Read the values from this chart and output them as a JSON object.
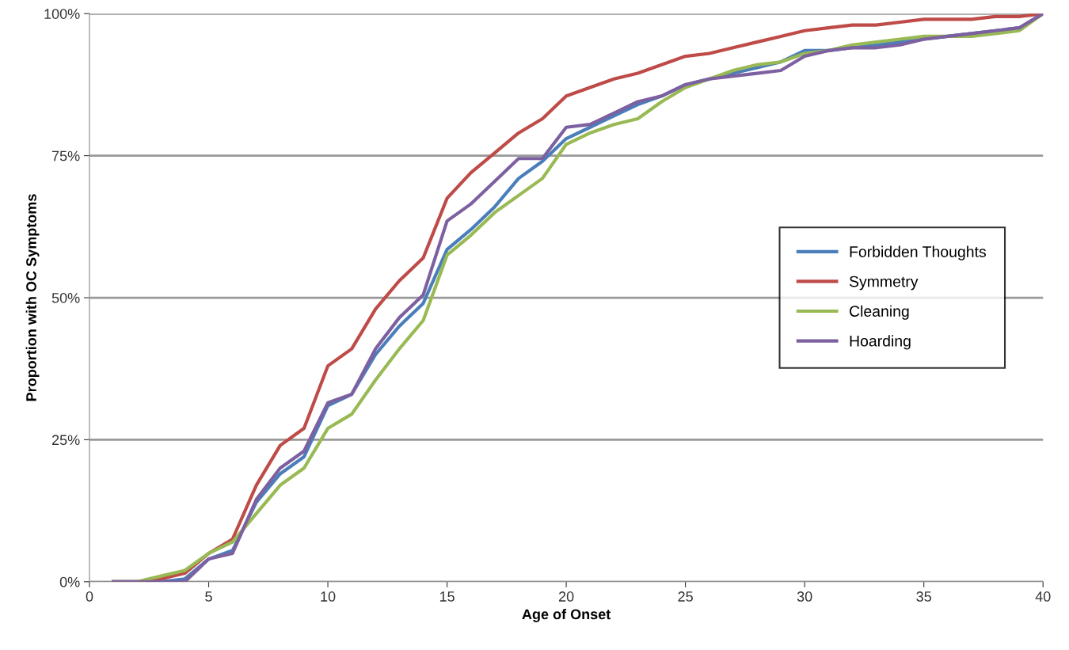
{
  "chart_data": {
    "type": "line",
    "xlabel": "Age of Onset",
    "ylabel": "Proportion with OC Symptoms",
    "x": [
      1,
      2,
      3,
      4,
      5,
      6,
      7,
      8,
      9,
      10,
      11,
      12,
      13,
      14,
      15,
      16,
      17,
      18,
      19,
      20,
      21,
      22,
      23,
      24,
      25,
      26,
      27,
      28,
      29,
      30,
      31,
      32,
      33,
      34,
      35,
      36,
      37,
      38,
      39,
      40
    ],
    "series": [
      {
        "name": "Forbidden Thoughts",
        "color": "#4a7ebb",
        "values": [
          0,
          0,
          0,
          0.5,
          4,
          5.5,
          14,
          19,
          22,
          31,
          33,
          40,
          45,
          49,
          58.5,
          62,
          66,
          71,
          74,
          78,
          80,
          82,
          84,
          85.5,
          87.5,
          88.5,
          89.5,
          90.5,
          91.5,
          93.5,
          93.5,
          94,
          94.5,
          95,
          95.5,
          96,
          96.5,
          97,
          97.5,
          100
        ]
      },
      {
        "name": "Symmetry",
        "color": "#be4b48",
        "values": [
          0,
          0,
          0.5,
          1.5,
          5,
          7.5,
          17,
          24,
          27,
          38,
          41,
          48,
          53,
          57,
          67.5,
          72,
          75.5,
          79,
          81.5,
          85.5,
          87,
          88.5,
          89.5,
          91,
          92.5,
          93,
          94,
          95,
          96,
          97,
          97.5,
          98,
          98,
          98.5,
          99,
          99,
          99,
          99.5,
          99.5,
          100
        ]
      },
      {
        "name": "Cleaning",
        "color": "#98b954",
        "values": [
          0,
          0,
          1,
          2,
          5,
          7,
          12,
          17,
          20,
          27,
          29.5,
          35.5,
          41,
          46,
          57.5,
          61,
          65,
          68,
          71,
          77,
          79,
          80.5,
          81.5,
          84.5,
          87,
          88.5,
          90,
          91,
          91.5,
          93,
          93.5,
          94.5,
          95,
          95.5,
          96,
          96,
          96,
          96.5,
          97,
          100
        ]
      },
      {
        "name": "Hoarding",
        "color": "#7d60a0",
        "values": [
          0,
          0,
          0,
          0,
          4,
          5,
          14.5,
          20,
          23,
          31.5,
          33,
          41,
          46.5,
          50.5,
          63.5,
          66.5,
          70.5,
          74.5,
          74.5,
          80,
          80.5,
          82.5,
          84.5,
          85.5,
          87.5,
          88.5,
          89,
          89.5,
          90,
          92.5,
          93.5,
          94,
          94,
          94.5,
          95.5,
          96,
          96.5,
          97,
          97.5,
          100
        ]
      }
    ],
    "xlim": [
      0,
      40
    ],
    "xticks": [
      0,
      5,
      10,
      15,
      20,
      25,
      30,
      35,
      40
    ],
    "ylim": [
      0,
      100
    ],
    "yticks": [
      {
        "value": 0,
        "label": "0%"
      },
      {
        "value": 25,
        "label": "25%"
      },
      {
        "value": 50,
        "label": "50%"
      },
      {
        "value": 75,
        "label": "75%"
      },
      {
        "value": 100,
        "label": "100%"
      }
    ],
    "grid": "y",
    "legend": "right",
    "marker": "none",
    "line_style": "solid"
  }
}
